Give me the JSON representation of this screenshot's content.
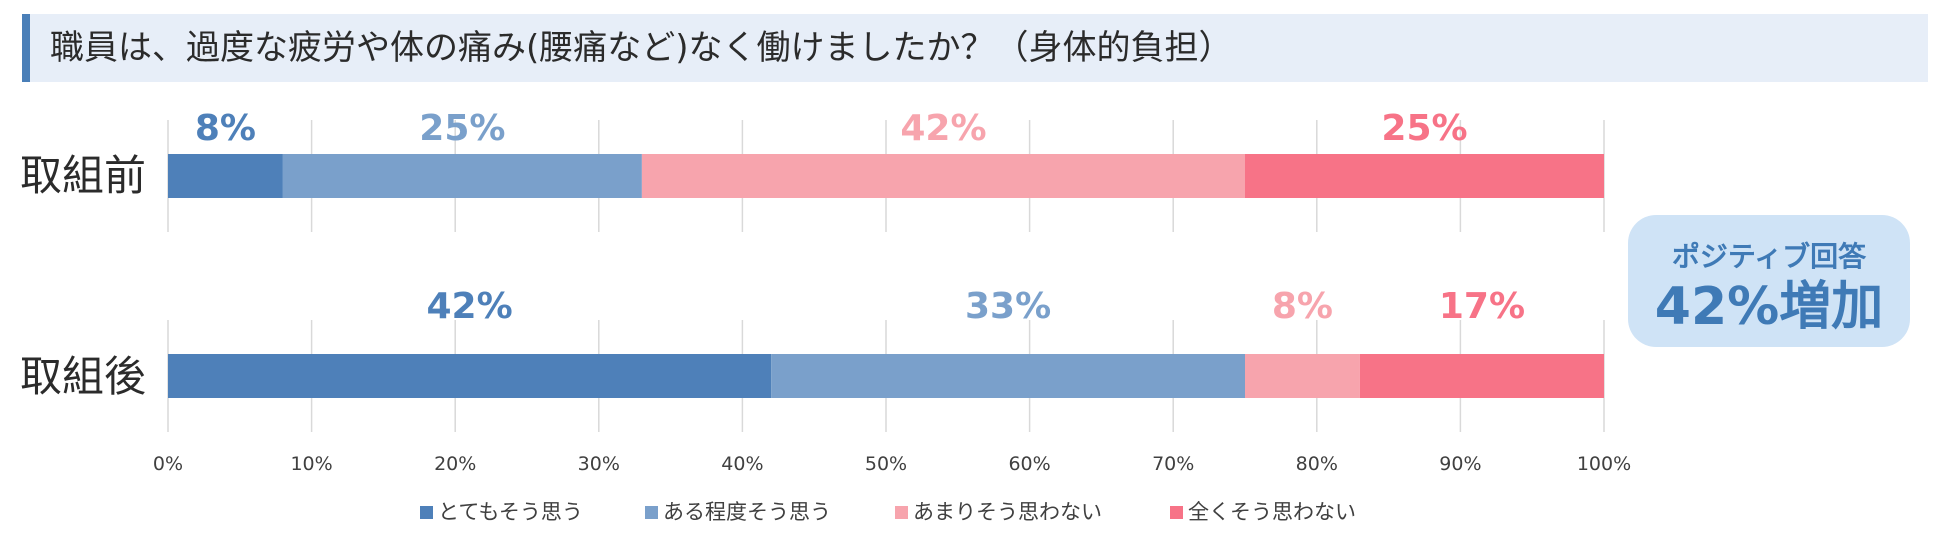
{
  "title": "職員は、過度な疲労や体の痛み(腰痛など)なく働けましたか？（身体的負担）",
  "badge": {
    "line1": "ポジティブ回答",
    "line2": "42%増加"
  },
  "colors": {
    "series": [
      "#4e80b9",
      "#7aa0cb",
      "#f7a4ad",
      "#f77387"
    ],
    "grid": "#d9d9d9",
    "axis_text": "#404040",
    "row_label": "#2b2b2b"
  },
  "chart_data": {
    "type": "bar",
    "orientation": "horizontal",
    "stacked": true,
    "percent_stacked": true,
    "categories": [
      "取組前",
      "取組後"
    ],
    "series": [
      {
        "name": "とてもそう思う",
        "values": [
          8,
          42
        ],
        "labels": [
          "8%",
          "42%"
        ]
      },
      {
        "name": "ある程度そう思う",
        "values": [
          25,
          33
        ],
        "labels": [
          "25%",
          "33%"
        ]
      },
      {
        "name": "あまりそう思わない",
        "values": [
          42,
          8
        ],
        "labels": [
          "42%",
          "8%"
        ]
      },
      {
        "name": "全くそう思わない",
        "values": [
          25,
          17
        ],
        "labels": [
          "25%",
          "17%"
        ]
      }
    ],
    "xlim": [
      0,
      100
    ],
    "x_ticks": [
      "0%",
      "10%",
      "20%",
      "30%",
      "40%",
      "50%",
      "60%",
      "70%",
      "80%",
      "90%",
      "100%"
    ],
    "grid": true,
    "legend": "bottom"
  }
}
